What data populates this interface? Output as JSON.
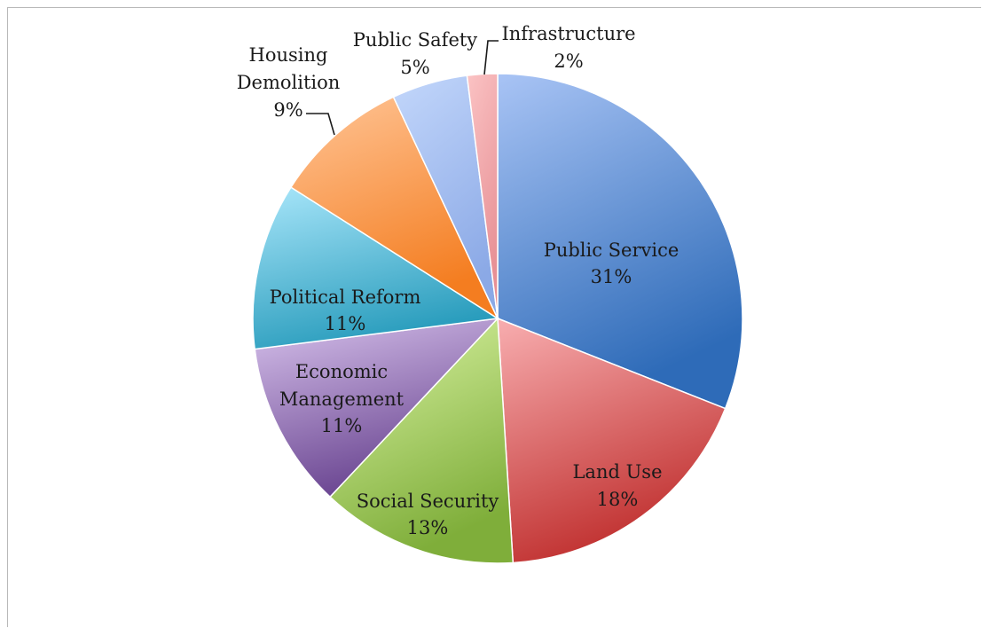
{
  "chart_data": {
    "type": "pie",
    "title": "",
    "legend": "none",
    "slices": [
      {
        "label": "Public Service",
        "value": 31,
        "value_label": "31%",
        "color_light": "#a9c4f5",
        "color_dark": "#2e6bb8"
      },
      {
        "label": "Land Use",
        "value": 18,
        "value_label": "18%",
        "color_light": "#f8aeb0",
        "color_dark": "#c0302f"
      },
      {
        "label": "Social Security",
        "value": 13,
        "value_label": "13%",
        "color_light": "#dcf5a6",
        "color_dark": "#7fae3a"
      },
      {
        "label": "Economic Management",
        "value": 11,
        "value_label": "11%",
        "color_light": "#d7c2ec",
        "color_dark": "#6a4591"
      },
      {
        "label": "Political Reform",
        "value": 11,
        "value_label": "11%",
        "color_light": "#a9e6fa",
        "color_dark": "#2a9dbd"
      },
      {
        "label": "Housing Demolition",
        "value": 9,
        "value_label": "9%",
        "color_light": "#ffc597",
        "color_dark": "#f47d20"
      },
      {
        "label": "Public Safety",
        "value": 5,
        "value_label": "5%",
        "color_light": "#c3d7fb",
        "color_dark": "#8ba9e6"
      },
      {
        "label": "Infrastructure",
        "value": 2,
        "value_label": "2%",
        "color_light": "#fbc3c4",
        "color_dark": "#e79095"
      }
    ]
  }
}
